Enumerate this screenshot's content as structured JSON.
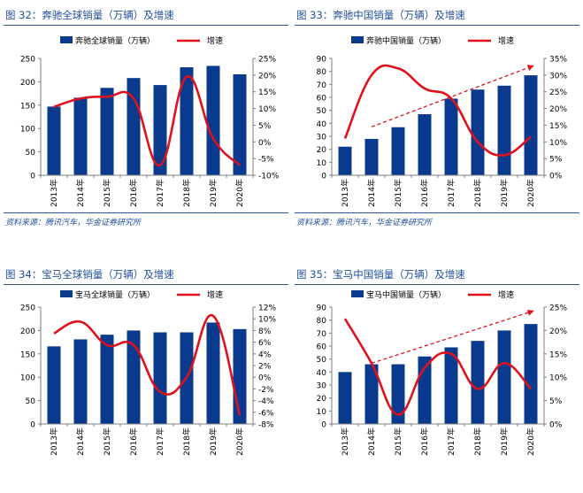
{
  "colors": {
    "bar": "#0a3a8e",
    "line": "#e0111b",
    "trend": "#e0111b",
    "title": "#1f4e9b"
  },
  "charts": [
    {
      "title": "图 32：奔驰全球销量（万辆）及增速",
      "source": "资料来源：腾讯汽车，华金证券研究所",
      "legend_bar": "奔驰全球销量（万辆）",
      "legend_line": "增速",
      "left_ticks": [
        "0",
        "50",
        "100",
        "150",
        "200",
        "250"
      ],
      "right_ticks": [
        "-10%",
        "-5%",
        "0%",
        "5%",
        "10%",
        "15%",
        "20%",
        "25%"
      ],
      "categories": [
        "2013年",
        "2014年",
        "2015年",
        "2016年",
        "2017年",
        "2018年",
        "2019年",
        "2020年"
      ]
    },
    {
      "title": "图 33：奔驰中国销量（万辆）及增速",
      "source": "资料来源：腾讯汽车，华金证券研究所",
      "legend_bar": "奔驰中国销量（万辆）",
      "legend_line": "增速",
      "left_ticks": [
        "0",
        "10",
        "20",
        "30",
        "40",
        "50",
        "60",
        "70",
        "80",
        "90"
      ],
      "right_ticks": [
        "0%",
        "5%",
        "10%",
        "15%",
        "20%",
        "25%",
        "30%",
        "35%"
      ],
      "categories": [
        "2013年",
        "2014年",
        "2015年",
        "2016年",
        "2017年",
        "2018年",
        "2019年",
        "2020年"
      ]
    },
    {
      "title": "图 34：宝马全球销量（万辆）及增速",
      "source": "",
      "legend_bar": "宝马全球销量（万辆）",
      "legend_line": "增速",
      "left_ticks": [
        "0",
        "50",
        "100",
        "150",
        "200",
        "250"
      ],
      "right_ticks": [
        "-8%",
        "-6%",
        "-4%",
        "-2%",
        "0%",
        "2%",
        "4%",
        "6%",
        "8%",
        "10%",
        "12%"
      ],
      "categories": [
        "2013年",
        "2014年",
        "2015年",
        "2016年",
        "2017年",
        "2018年",
        "2019年",
        "2020年"
      ]
    },
    {
      "title": "图 35：宝马中国销量（万辆）及增速",
      "source": "",
      "legend_bar": "宝马中国销量（万辆）",
      "legend_line": "增速",
      "left_ticks": [
        "0",
        "10",
        "20",
        "30",
        "40",
        "50",
        "60",
        "70",
        "80",
        "90"
      ],
      "right_ticks": [
        "0%",
        "5%",
        "10%",
        "15%",
        "20%",
        "25%"
      ],
      "categories": [
        "2013年",
        "2014年",
        "2015年",
        "2016年",
        "2017年",
        "2018年",
        "2019年",
        "2020年"
      ]
    }
  ],
  "chart_data": [
    {
      "type": "bar",
      "title": "图 32：奔驰全球销量（万辆）及增速",
      "categories": [
        "2013年",
        "2014年",
        "2015年",
        "2016年",
        "2017年",
        "2018年",
        "2019年",
        "2020年"
      ],
      "ylim": [
        0,
        250
      ],
      "y2lim": [
        -10,
        25
      ],
      "series": [
        {
          "name": "奔驰全球销量（万辆）",
          "type": "bar",
          "axis": "left",
          "values": [
            147,
            166,
            187,
            208,
            193,
            231,
            234,
            216
          ]
        },
        {
          "name": "增速",
          "type": "line",
          "axis": "right",
          "unit": "%",
          "values": [
            10.5,
            13,
            13.5,
            13,
            -7,
            19.5,
            1,
            -7
          ]
        }
      ],
      "legend": "top",
      "grid": false
    },
    {
      "type": "bar",
      "title": "图 33：奔驰中国销量（万辆）及增速",
      "categories": [
        "2013年",
        "2014年",
        "2015年",
        "2016年",
        "2017年",
        "2018年",
        "2019年",
        "2020年"
      ],
      "ylim": [
        0,
        90
      ],
      "y2lim": [
        0,
        35
      ],
      "series": [
        {
          "name": "奔驰中国销量（万辆）",
          "type": "bar",
          "axis": "left",
          "values": [
            22,
            28,
            37,
            47,
            59,
            66,
            69,
            77
          ]
        },
        {
          "name": "增速",
          "type": "line",
          "axis": "right",
          "unit": "%",
          "values": [
            11,
            30,
            32,
            26,
            23,
            10,
            6,
            11.5
          ]
        }
      ],
      "trend": {
        "from": 1,
        "to": 7,
        "values": [
          14.5,
          32.5
        ]
      },
      "legend": "top",
      "grid": false
    },
    {
      "type": "bar",
      "title": "图 34：宝马全球销量（万辆）及增速",
      "categories": [
        "2013年",
        "2014年",
        "2015年",
        "2016年",
        "2017年",
        "2018年",
        "2019年",
        "2020年"
      ],
      "ylim": [
        0,
        250
      ],
      "y2lim": [
        -8,
        12
      ],
      "series": [
        {
          "name": "宝马全球销量（万辆）",
          "type": "bar",
          "axis": "left",
          "values": [
            166,
            181,
            191,
            200,
            196,
            196,
            217,
            203
          ]
        },
        {
          "name": "增速",
          "type": "line",
          "axis": "right",
          "unit": "%",
          "values": [
            7.5,
            9.5,
            5.5,
            5.5,
            -2.5,
            0,
            10.5,
            -6.5
          ]
        }
      ],
      "legend": "top",
      "grid": false
    },
    {
      "type": "bar",
      "title": "图 35：宝马中国销量（万辆）及增速",
      "categories": [
        "2013年",
        "2014年",
        "2015年",
        "2016年",
        "2017年",
        "2018年",
        "2019年",
        "2020年"
      ],
      "ylim": [
        0,
        90
      ],
      "y2lim": [
        0,
        25
      ],
      "series": [
        {
          "name": "宝马中国销量（万辆）",
          "type": "bar",
          "axis": "left",
          "values": [
            40,
            46,
            46,
            52,
            59,
            64,
            72,
            77
          ]
        },
        {
          "name": "增速",
          "type": "line",
          "axis": "right",
          "unit": "%",
          "values": [
            22.5,
            13,
            2,
            12,
            15,
            7.5,
            13,
            7.5
          ]
        }
      ],
      "trend": {
        "from": 1,
        "to": 7,
        "values": [
          13,
          24
        ]
      },
      "legend": "top",
      "grid": false
    }
  ]
}
